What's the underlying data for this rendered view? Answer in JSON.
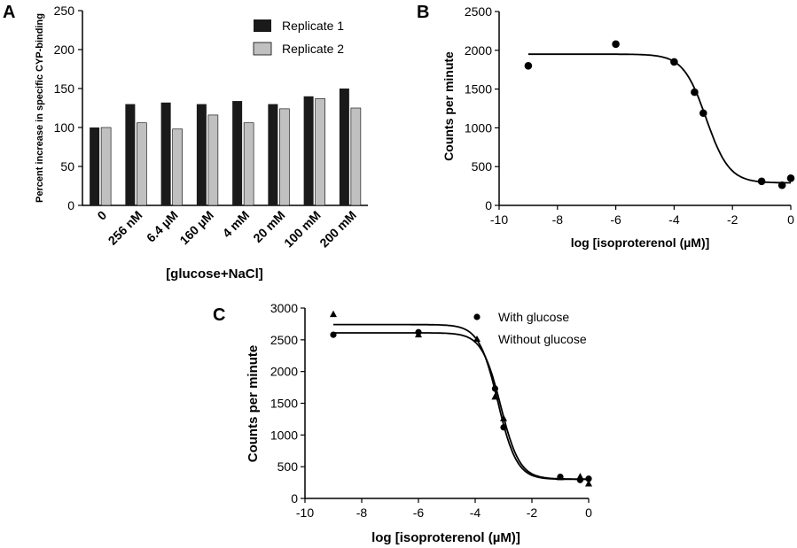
{
  "chart_data": [
    {
      "panel": "A",
      "type": "bar",
      "categories": [
        "0",
        "256 nM",
        "6.4 µM",
        "160 µM",
        "4 mM",
        "20 mM",
        "100 mM",
        "200 mM"
      ],
      "series": [
        {
          "name": "Replicate 1",
          "color": "#1a1a1a",
          "values": [
            100,
            130,
            132,
            130,
            134,
            130,
            140,
            150
          ]
        },
        {
          "name": "Replicate 2",
          "color": "#c0c0c0",
          "values": [
            100,
            106,
            98,
            116,
            106,
            124,
            137,
            125
          ]
        }
      ],
      "xlabel": "[glucose+NaCl]",
      "ylabel": "Percent increase in specific CYP-binding",
      "ylim": [
        0,
        250
      ],
      "yticks": [
        "0",
        "50",
        "100",
        "150",
        "200",
        "250"
      ],
      "legend": "top-right"
    },
    {
      "panel": "B",
      "type": "scatter",
      "xlabel": "log [isoproterenol (µM)]",
      "ylabel": "Counts per minute",
      "xlim": [
        -10,
        0
      ],
      "ylim": [
        0,
        2500
      ],
      "xticks": [
        "-10",
        "-8",
        "-6",
        "-4",
        "-2",
        "0"
      ],
      "yticks": [
        "0",
        "500",
        "1000",
        "1500",
        "2000",
        "2500"
      ],
      "series": [
        {
          "name": "",
          "marker": "circle",
          "points": [
            [
              -9,
              1800
            ],
            [
              -6,
              2080
            ],
            [
              -4,
              1850
            ],
            [
              -3.3,
              1460
            ],
            [
              -3,
              1190
            ],
            [
              -1,
              310
            ],
            [
              -0.3,
              260
            ],
            [
              0,
              350
            ]
          ],
          "fit": {
            "top": 1950,
            "bottom": 290,
            "logEC50": -2.9,
            "hill": 1.1
          }
        }
      ]
    },
    {
      "panel": "C",
      "type": "scatter",
      "xlabel": "log [isoproterenol (µM)]",
      "ylabel": "Counts per minute",
      "xlim": [
        -10,
        0
      ],
      "ylim": [
        0,
        3000
      ],
      "xticks": [
        "-10",
        "-8",
        "-6",
        "-4",
        "-2",
        "0"
      ],
      "yticks": [
        "0",
        "500",
        "1000",
        "1500",
        "2000",
        "2500",
        "3000"
      ],
      "legend": "top-right",
      "series": [
        {
          "name": "With glucose",
          "marker": "circle",
          "points": [
            [
              -9,
              2580
            ],
            [
              -6,
              2620
            ],
            [
              -3.3,
              1730
            ],
            [
              -3,
              1120
            ],
            [
              -1,
              340
            ],
            [
              -0.3,
              290
            ],
            [
              0,
              310
            ]
          ],
          "fit": {
            "top": 2610,
            "bottom": 305,
            "logEC50": -3.1,
            "hill": 1.3
          }
        },
        {
          "name": "Without glucose",
          "marker": "triangle",
          "points": [
            [
              -9,
              2900
            ],
            [
              -6,
              2580
            ],
            [
              -3.3,
              1600
            ],
            [
              -3,
              1260
            ],
            [
              -1,
              330
            ],
            [
              -0.3,
              340
            ],
            [
              0,
              230
            ]
          ],
          "fit": {
            "top": 2740,
            "bottom": 300,
            "logEC50": -3.2,
            "hill": 1.3
          }
        }
      ]
    }
  ]
}
